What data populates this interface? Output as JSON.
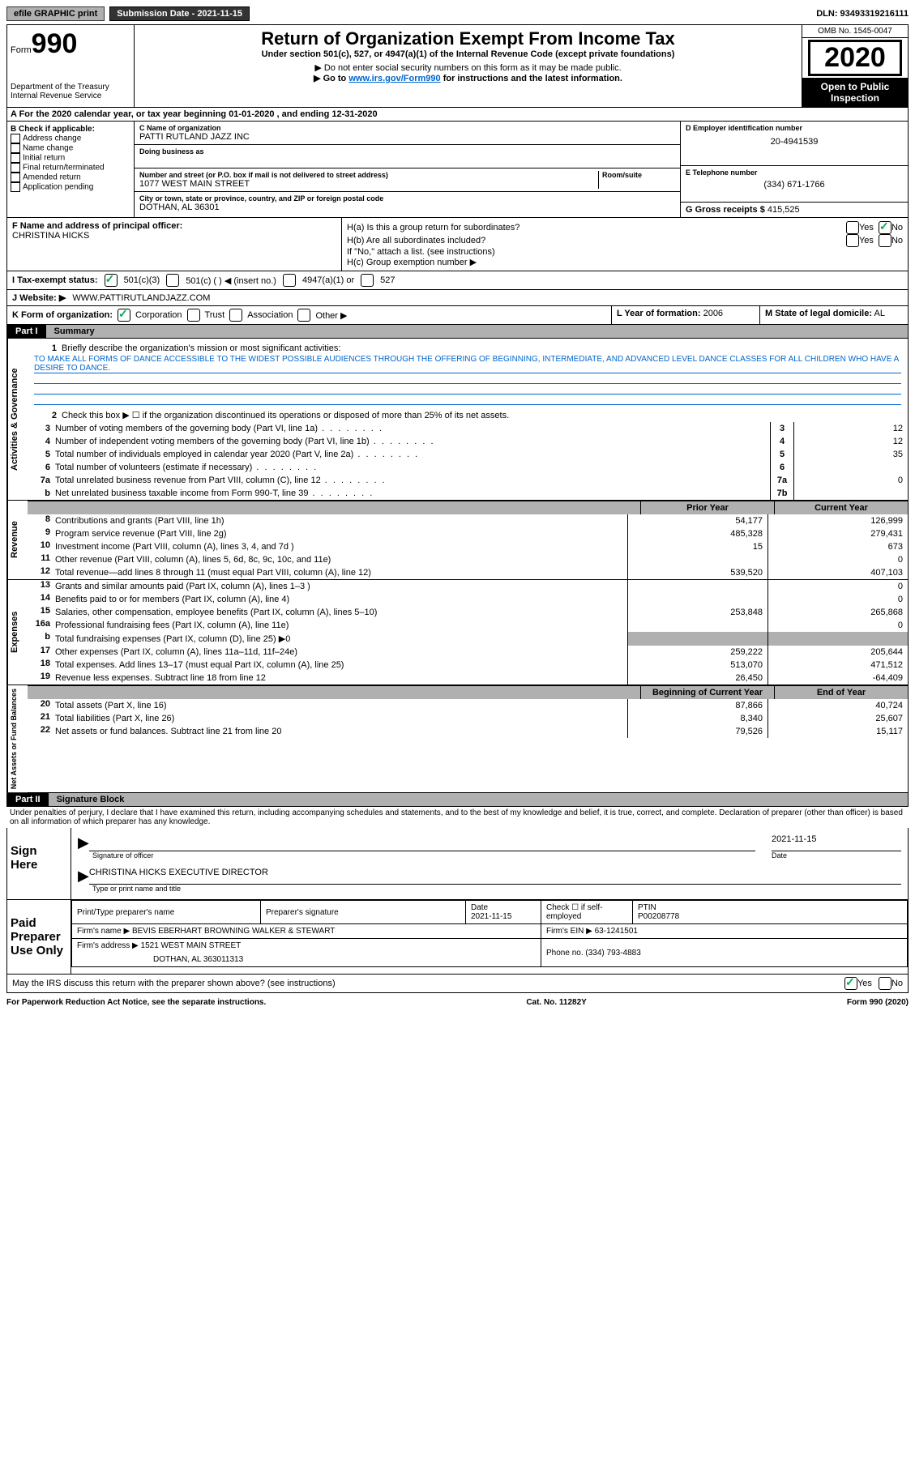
{
  "topbar": {
    "efile": "efile GRAPHIC print",
    "sub_label": "Submission Date - 2021-11-15",
    "dln": "DLN: 93493319216111"
  },
  "header": {
    "form_prefix": "Form",
    "form_number": "990",
    "dept": "Department of the Treasury\nInternal Revenue Service",
    "title": "Return of Organization Exempt From Income Tax",
    "subtitle": "Under section 501(c), 527, or 4947(a)(1) of the Internal Revenue Code (except private foundations)",
    "note1": "▶ Do not enter social security numbers on this form as it may be made public.",
    "note2_pre": "▶ Go to ",
    "note2_link": "www.irs.gov/Form990",
    "note2_post": " for instructions and the latest information.",
    "omb": "OMB No. 1545-0047",
    "year": "2020",
    "inspect": "Open to Public Inspection"
  },
  "row_a": "A For the 2020 calendar year, or tax year beginning 01-01-2020    , and ending 12-31-2020",
  "box_b": {
    "label": "B Check if applicable:",
    "items": [
      "Address change",
      "Name change",
      "Initial return",
      "Final return/terminated",
      "Amended return",
      "Application pending"
    ]
  },
  "box_c": {
    "name_label": "C Name of organization",
    "name": "PATTI RUTLAND JAZZ INC",
    "dba_label": "Doing business as",
    "addr_label": "Number and street (or P.O. box if mail is not delivered to street address)",
    "room_label": "Room/suite",
    "addr": "1077 WEST MAIN STREET",
    "city_label": "City or town, state or province, country, and ZIP or foreign postal code",
    "city": "DOTHAN, AL  36301"
  },
  "box_d": {
    "label": "D Employer identification number",
    "value": "20-4941539"
  },
  "box_e": {
    "label": "E Telephone number",
    "value": "(334) 671-1766"
  },
  "box_g": {
    "label": "G Gross receipts $",
    "value": "415,525"
  },
  "box_f": {
    "label": "F  Name and address of principal officer:",
    "value": "CHRISTINA HICKS"
  },
  "box_h": {
    "ha": "H(a)  Is this a group return for subordinates?",
    "hb": "H(b)  Are all subordinates included?",
    "hb_note": "If \"No,\" attach a list. (see instructions)",
    "hc": "H(c)  Group exemption number ▶",
    "yes": "Yes",
    "no": "No"
  },
  "row_i": {
    "label": "I   Tax-exempt status:",
    "o1": "501(c)(3)",
    "o2": "501(c) (  ) ◀ (insert no.)",
    "o3": "4947(a)(1) or",
    "o4": "527"
  },
  "row_j": {
    "label": "J   Website: ▶",
    "value": "WWW.PATTIRUTLANDJAZZ.COM"
  },
  "row_k": {
    "label": "K Form of organization:",
    "o1": "Corporation",
    "o2": "Trust",
    "o3": "Association",
    "o4": "Other ▶"
  },
  "row_l": {
    "label": "L Year of formation:",
    "value": "2006"
  },
  "row_m": {
    "label": "M State of legal domicile:",
    "value": "AL"
  },
  "parts": {
    "p1": "Part I",
    "p1_title": "Summary",
    "p2": "Part II",
    "p2_title": "Signature Block"
  },
  "verticals": {
    "gov": "Activities & Governance",
    "rev": "Revenue",
    "exp": "Expenses",
    "net": "Net Assets or Fund Balances"
  },
  "summary": {
    "l1": "Briefly describe the organization's mission or most significant activities:",
    "mission": "TO MAKE ALL FORMS OF DANCE ACCESSIBLE TO THE WIDEST POSSIBLE AUDIENCES THROUGH THE OFFERING OF BEGINNING, INTERMEDIATE, AND ADVANCED LEVEL DANCE CLASSES FOR ALL CHILDREN WHO HAVE A DESIRE TO DANCE.",
    "l2": "Check this box ▶ ☐ if the organization discontinued its operations or disposed of more than 25% of its net assets.",
    "rows": [
      {
        "n": "3",
        "t": "Number of voting members of the governing body (Part VI, line 1a)",
        "cn": "3",
        "v": "12"
      },
      {
        "n": "4",
        "t": "Number of independent voting members of the governing body (Part VI, line 1b)",
        "cn": "4",
        "v": "12"
      },
      {
        "n": "5",
        "t": "Total number of individuals employed in calendar year 2020 (Part V, line 2a)",
        "cn": "5",
        "v": "35"
      },
      {
        "n": "6",
        "t": "Total number of volunteers (estimate if necessary)",
        "cn": "6",
        "v": ""
      },
      {
        "n": "7a",
        "t": "Total unrelated business revenue from Part VIII, column (C), line 12",
        "cn": "7a",
        "v": "0"
      },
      {
        "n": "b",
        "t": "Net unrelated business taxable income from Form 990-T, line 39",
        "cn": "7b",
        "v": ""
      }
    ]
  },
  "fin": {
    "hdr_prior": "Prior Year",
    "hdr_curr": "Current Year",
    "hdr_beg": "Beginning of Current Year",
    "hdr_end": "End of Year",
    "rev": [
      {
        "n": "8",
        "t": "Contributions and grants (Part VIII, line 1h)",
        "p": "54,177",
        "c": "126,999"
      },
      {
        "n": "9",
        "t": "Program service revenue (Part VIII, line 2g)",
        "p": "485,328",
        "c": "279,431"
      },
      {
        "n": "10",
        "t": "Investment income (Part VIII, column (A), lines 3, 4, and 7d )",
        "p": "15",
        "c": "673"
      },
      {
        "n": "11",
        "t": "Other revenue (Part VIII, column (A), lines 5, 6d, 8c, 9c, 10c, and 11e)",
        "p": "",
        "c": "0"
      },
      {
        "n": "12",
        "t": "Total revenue—add lines 8 through 11 (must equal Part VIII, column (A), line 12)",
        "p": "539,520",
        "c": "407,103"
      }
    ],
    "exp": [
      {
        "n": "13",
        "t": "Grants and similar amounts paid (Part IX, column (A), lines 1–3 )",
        "p": "",
        "c": "0"
      },
      {
        "n": "14",
        "t": "Benefits paid to or for members (Part IX, column (A), line 4)",
        "p": "",
        "c": "0"
      },
      {
        "n": "15",
        "t": "Salaries, other compensation, employee benefits (Part IX, column (A), lines 5–10)",
        "p": "253,848",
        "c": "265,868"
      },
      {
        "n": "16a",
        "t": "Professional fundraising fees (Part IX, column (A), line 11e)",
        "p": "",
        "c": "0"
      },
      {
        "n": "b",
        "t": "Total fundraising expenses (Part IX, column (D), line 25) ▶0",
        "gray": true
      },
      {
        "n": "17",
        "t": "Other expenses (Part IX, column (A), lines 11a–11d, 11f–24e)",
        "p": "259,222",
        "c": "205,644"
      },
      {
        "n": "18",
        "t": "Total expenses. Add lines 13–17 (must equal Part IX, column (A), line 25)",
        "p": "513,070",
        "c": "471,512"
      },
      {
        "n": "19",
        "t": "Revenue less expenses. Subtract line 18 from line 12",
        "p": "26,450",
        "c": "-64,409"
      }
    ],
    "net": [
      {
        "n": "20",
        "t": "Total assets (Part X, line 16)",
        "p": "87,866",
        "c": "40,724"
      },
      {
        "n": "21",
        "t": "Total liabilities (Part X, line 26)",
        "p": "8,340",
        "c": "25,607"
      },
      {
        "n": "22",
        "t": "Net assets or fund balances. Subtract line 21 from line 20",
        "p": "79,526",
        "c": "15,117"
      }
    ]
  },
  "sig": {
    "penalties": "Under penalties of perjury, I declare that I have examined this return, including accompanying schedules and statements, and to the best of my knowledge and belief, it is true, correct, and complete. Declaration of preparer (other than officer) is based on all information of which preparer has any knowledge.",
    "sign_here": "Sign Here",
    "sig_officer": "Signature of officer",
    "date": "Date",
    "date_val": "2021-11-15",
    "name_title": "CHRISTINA HICKS  EXECUTIVE DIRECTOR",
    "type_name": "Type or print name and title"
  },
  "prep": {
    "label": "Paid Preparer Use Only",
    "h1": "Print/Type preparer's name",
    "h2": "Preparer's signature",
    "h3": "Date",
    "h3v": "2021-11-15",
    "h4": "Check ☐ if self-employed",
    "h5": "PTIN",
    "h5v": "P00208778",
    "firm_name_l": "Firm's name    ▶",
    "firm_name": "BEVIS EBERHART BROWNING WALKER & STEWART",
    "firm_ein_l": "Firm's EIN ▶",
    "firm_ein": "63-1241501",
    "firm_addr_l": "Firm's address ▶",
    "firm_addr": "1521 WEST MAIN STREET",
    "firm_addr2": "DOTHAN, AL  363011313",
    "phone_l": "Phone no.",
    "phone": "(334) 793-4883",
    "discuss": "May the IRS discuss this return with the preparer shown above? (see instructions)"
  },
  "footer": {
    "left": "For Paperwork Reduction Act Notice, see the separate instructions.",
    "mid": "Cat. No. 11282Y",
    "right": "Form 990 (2020)"
  }
}
